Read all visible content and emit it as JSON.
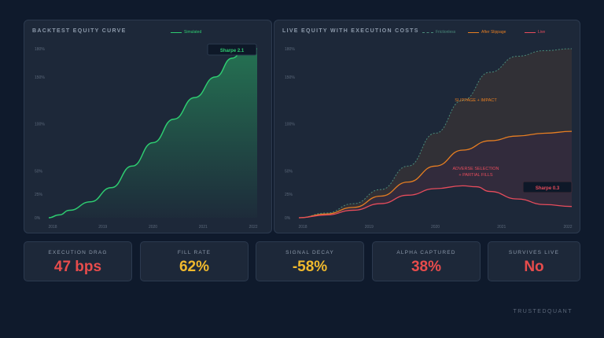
{
  "colors": {
    "simulated": "#2ecc71",
    "frictionless": "#4a8a7a",
    "after_slippage": "#e67e22",
    "live": "#e74c5c",
    "drag": "#e74c4c",
    "fill": "#f0b92d"
  },
  "chart_data": [
    {
      "type": "area",
      "title": "BACKTEST EQUITY CURVE",
      "x_ticks": [
        "2018",
        "2019",
        "2020",
        "2021",
        "2022"
      ],
      "y_ticks": [
        "0%",
        "25%",
        "50%",
        "100%",
        "150%",
        "180%"
      ],
      "series": [
        {
          "name": "Simulated",
          "x": [
            0,
            0.05,
            0.1,
            0.2,
            0.3,
            0.4,
            0.5,
            0.6,
            0.7,
            0.8,
            0.88,
            0.94,
            1.0
          ],
          "y": [
            0,
            3,
            8,
            17,
            32,
            55,
            80,
            105,
            128,
            150,
            170,
            180,
            180
          ]
        }
      ],
      "badge": "Sharpe 2.1"
    },
    {
      "type": "line",
      "title": "LIVE EQUITY WITH EXECUTION COSTS",
      "x_ticks": [
        "2018",
        "2019",
        "2020",
        "2021",
        "2022"
      ],
      "y_ticks": [
        "0%",
        "25%",
        "50%",
        "100%",
        "150%",
        "180%"
      ],
      "series": [
        {
          "name": "Frictionless",
          "x": [
            0,
            0.1,
            0.2,
            0.3,
            0.4,
            0.5,
            0.6,
            0.7,
            0.8,
            0.9,
            1.0
          ],
          "y": [
            0,
            5,
            15,
            30,
            55,
            90,
            125,
            155,
            172,
            178,
            180
          ]
        },
        {
          "name": "After Slippage",
          "x": [
            0,
            0.1,
            0.2,
            0.3,
            0.4,
            0.5,
            0.6,
            0.7,
            0.8,
            0.9,
            1.0
          ],
          "y": [
            0,
            4,
            11,
            23,
            38,
            55,
            72,
            82,
            87,
            90,
            92
          ]
        },
        {
          "name": "Live",
          "x": [
            0,
            0.1,
            0.2,
            0.3,
            0.4,
            0.5,
            0.6,
            0.65,
            0.7,
            0.8,
            0.9,
            1.0
          ],
          "y": [
            0,
            3,
            8,
            15,
            24,
            31,
            34,
            33,
            28,
            20,
            14,
            12
          ]
        }
      ],
      "annotations": [
        "SLIPPAGE + IMPACT",
        "ADVERSE SELECTION",
        "+ PARTIAL FILLS"
      ],
      "badge": "Sharpe 0.3"
    }
  ],
  "metrics": [
    {
      "label": "EXECUTION DRAG",
      "value": "47 bps"
    },
    {
      "label": "FILL RATE",
      "value": "62%"
    },
    {
      "label": "SIGNAL DECAY",
      "value": "-58%"
    },
    {
      "label": "ALPHA CAPTURED",
      "value": "38%"
    },
    {
      "label": "SURVIVES LIVE",
      "value": "No"
    }
  ],
  "brand": "TRUSTEDQUANT"
}
